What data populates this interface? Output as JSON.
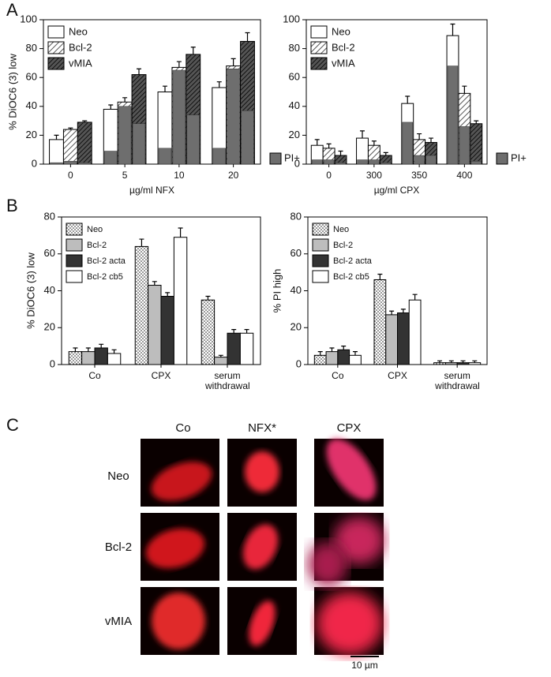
{
  "panel_labels": [
    "A",
    "B",
    "C"
  ],
  "chart_data": [
    {
      "type": "bar",
      "ylabel": "% DiOC6 (3) low",
      "xlabel": "µg/ml NFX",
      "categories": [
        "0",
        "5",
        "10",
        "20"
      ],
      "ylim": [
        0,
        100
      ],
      "yticks": [
        0,
        20,
        40,
        60,
        80,
        100
      ],
      "legend": "top-left",
      "pi_label": "PI+",
      "pi_color": "#6e6e6e",
      "series": [
        {
          "name": "Neo",
          "fill": "#ffffff",
          "values": [
            17,
            38,
            50,
            53
          ],
          "pi_values": [
            1,
            9,
            11,
            11
          ],
          "errors": [
            3,
            3,
            4,
            4
          ]
        },
        {
          "name": "Bcl-2",
          "fill": "url(#hatch-light)",
          "values": [
            24,
            43,
            67,
            68
          ],
          "pi_values": [
            2,
            40,
            65,
            66
          ],
          "errors": [
            1,
            3,
            4,
            5
          ]
        },
        {
          "name": "vMIA",
          "fill": "url(#hatch-dark)",
          "values": [
            29,
            62,
            76,
            85
          ],
          "pi_values": [
            1,
            28,
            34,
            37
          ],
          "errors": [
            1,
            4,
            5,
            6
          ]
        }
      ]
    },
    {
      "type": "bar",
      "xlabel": "µg/ml CPX",
      "categories": [
        "0",
        "300",
        "350",
        "400"
      ],
      "ylim": [
        0,
        100
      ],
      "yticks": [
        0,
        20,
        40,
        60,
        80,
        100
      ],
      "legend": "top-left",
      "pi_label": "PI+",
      "pi_color": "#6e6e6e",
      "series": [
        {
          "name": "Neo",
          "fill": "#ffffff",
          "values": [
            13,
            18,
            42,
            89
          ],
          "pi_values": [
            3,
            3,
            29,
            68
          ],
          "errors": [
            4,
            5,
            5,
            8
          ]
        },
        {
          "name": "Bcl-2",
          "fill": "url(#hatch-light)",
          "values": [
            11,
            13,
            17,
            49
          ],
          "pi_values": [
            3,
            3,
            6,
            26
          ],
          "errors": [
            3,
            3,
            4,
            5
          ]
        },
        {
          "name": "vMIA",
          "fill": "url(#hatch-dark)",
          "values": [
            6,
            6,
            15,
            28
          ],
          "pi_values": [
            1,
            1,
            6,
            2
          ],
          "errors": [
            3,
            2,
            3,
            2
          ]
        }
      ]
    },
    {
      "type": "bar",
      "ylabel": "% DiOC6 (3) low",
      "categories": [
        "Co",
        "CPX",
        "serum withdrawal"
      ],
      "ylim": [
        0,
        80
      ],
      "yticks": [
        0,
        20,
        40,
        60,
        80
      ],
      "legend": "top-left",
      "series": [
        {
          "name": "Neo",
          "fill": "url(#dots)",
          "values": [
            7,
            64,
            35
          ],
          "errors": [
            2,
            4,
            2
          ]
        },
        {
          "name": "Bcl-2",
          "fill": "#bdbdbd",
          "values": [
            7,
            43,
            4
          ],
          "errors": [
            2,
            2,
            1
          ]
        },
        {
          "name": "Bcl-2 acta",
          "fill": "#333333",
          "values": [
            9,
            37,
            17
          ],
          "errors": [
            2,
            2,
            2
          ]
        },
        {
          "name": "Bcl-2 cb5",
          "fill": "#ffffff",
          "values": [
            6,
            69,
            17
          ],
          "errors": [
            2,
            5,
            2
          ]
        }
      ]
    },
    {
      "type": "bar",
      "ylabel": "% PI high",
      "categories": [
        "Co",
        "CPX",
        "serum withdrawal"
      ],
      "ylim": [
        0,
        80
      ],
      "yticks": [
        0,
        20,
        40,
        60,
        80
      ],
      "legend": "top-left",
      "series": [
        {
          "name": "Neo",
          "fill": "url(#dots)",
          "values": [
            5,
            46,
            1
          ],
          "errors": [
            2,
            3,
            1
          ]
        },
        {
          "name": "Bcl-2",
          "fill": "#bdbdbd",
          "values": [
            7,
            27,
            1
          ],
          "errors": [
            2,
            2,
            1
          ]
        },
        {
          "name": "Bcl-2 acta",
          "fill": "#333333",
          "values": [
            8,
            28,
            1
          ],
          "errors": [
            2,
            2,
            1
          ]
        },
        {
          "name": "Bcl-2 cb5",
          "fill": "#ffffff",
          "values": [
            5,
            35,
            1
          ],
          "errors": [
            2,
            3,
            1
          ]
        }
      ]
    }
  ],
  "micrographs": {
    "columns": [
      "Co",
      "NFX*",
      "CPX"
    ],
    "rows": [
      "Neo",
      "Bcl-2",
      "vMIA"
    ],
    "scale_bar": "10 µm"
  }
}
